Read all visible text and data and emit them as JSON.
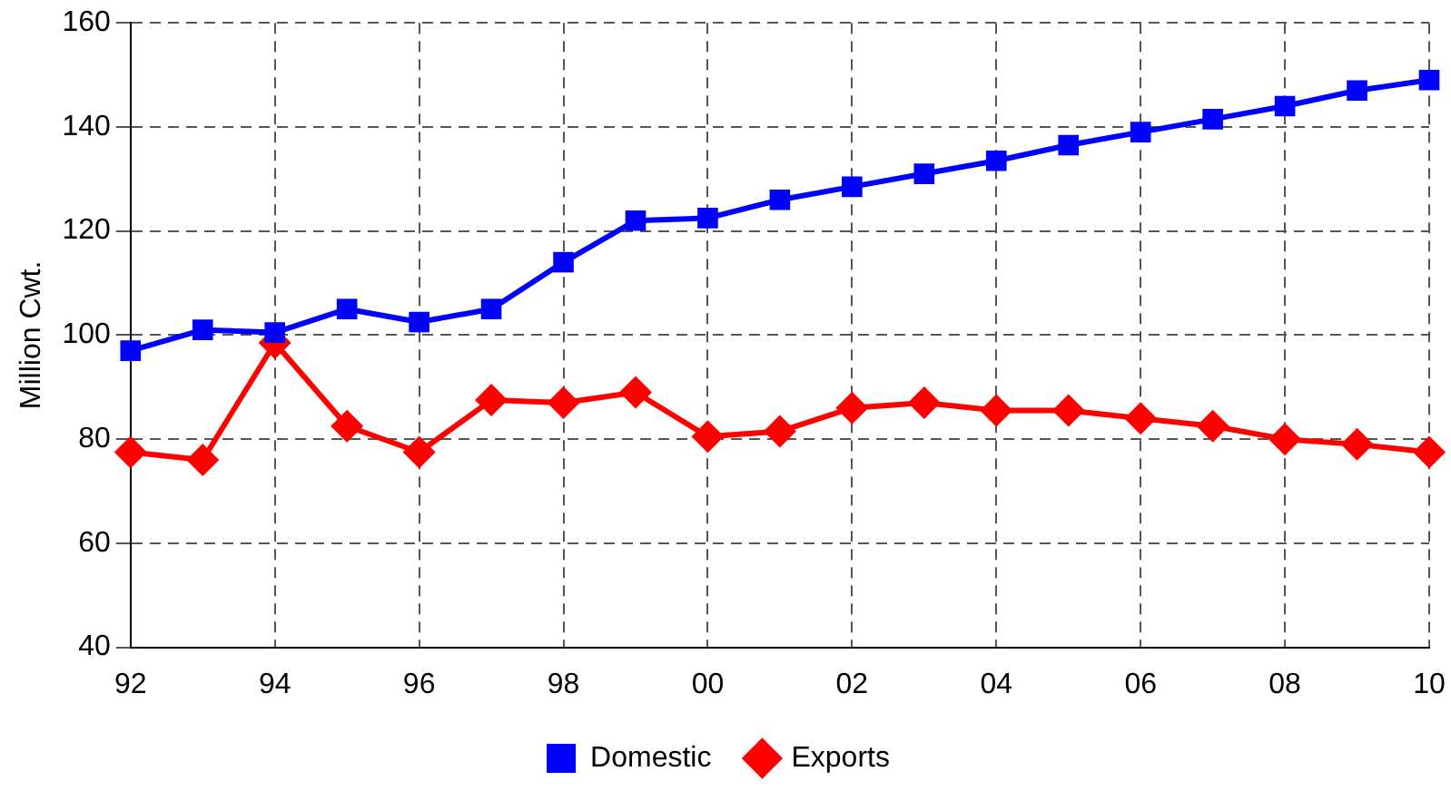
{
  "chart_data": {
    "type": "line",
    "ylabel": "Million Cwt.",
    "categories": [
      "92",
      null,
      "94",
      null,
      "96",
      null,
      "98",
      null,
      "00",
      null,
      "02",
      null,
      "04",
      null,
      "06",
      null,
      "08",
      null,
      "10"
    ],
    "series": [
      {
        "name": "Domestic",
        "color": "#0000ff",
        "marker": "square",
        "values": [
          97,
          101,
          100.5,
          105,
          102.5,
          105,
          114,
          122,
          122.5,
          126,
          128.5,
          131,
          133.5,
          136.5,
          139,
          141.5,
          144,
          147,
          149
        ]
      },
      {
        "name": "Exports",
        "color": "#ff0000",
        "marker": "diamond",
        "values": [
          77.5,
          76,
          98.5,
          82.5,
          77.5,
          87.5,
          87,
          89,
          80.5,
          81.5,
          86,
          87,
          85.5,
          85.5,
          84,
          82.5,
          80,
          79,
          77.5
        ]
      }
    ],
    "ylim": [
      40,
      160
    ],
    "yticks": [
      40,
      60,
      80,
      100,
      120,
      140,
      160
    ],
    "grid": true,
    "legend": "bottom",
    "line_style": "solid"
  }
}
